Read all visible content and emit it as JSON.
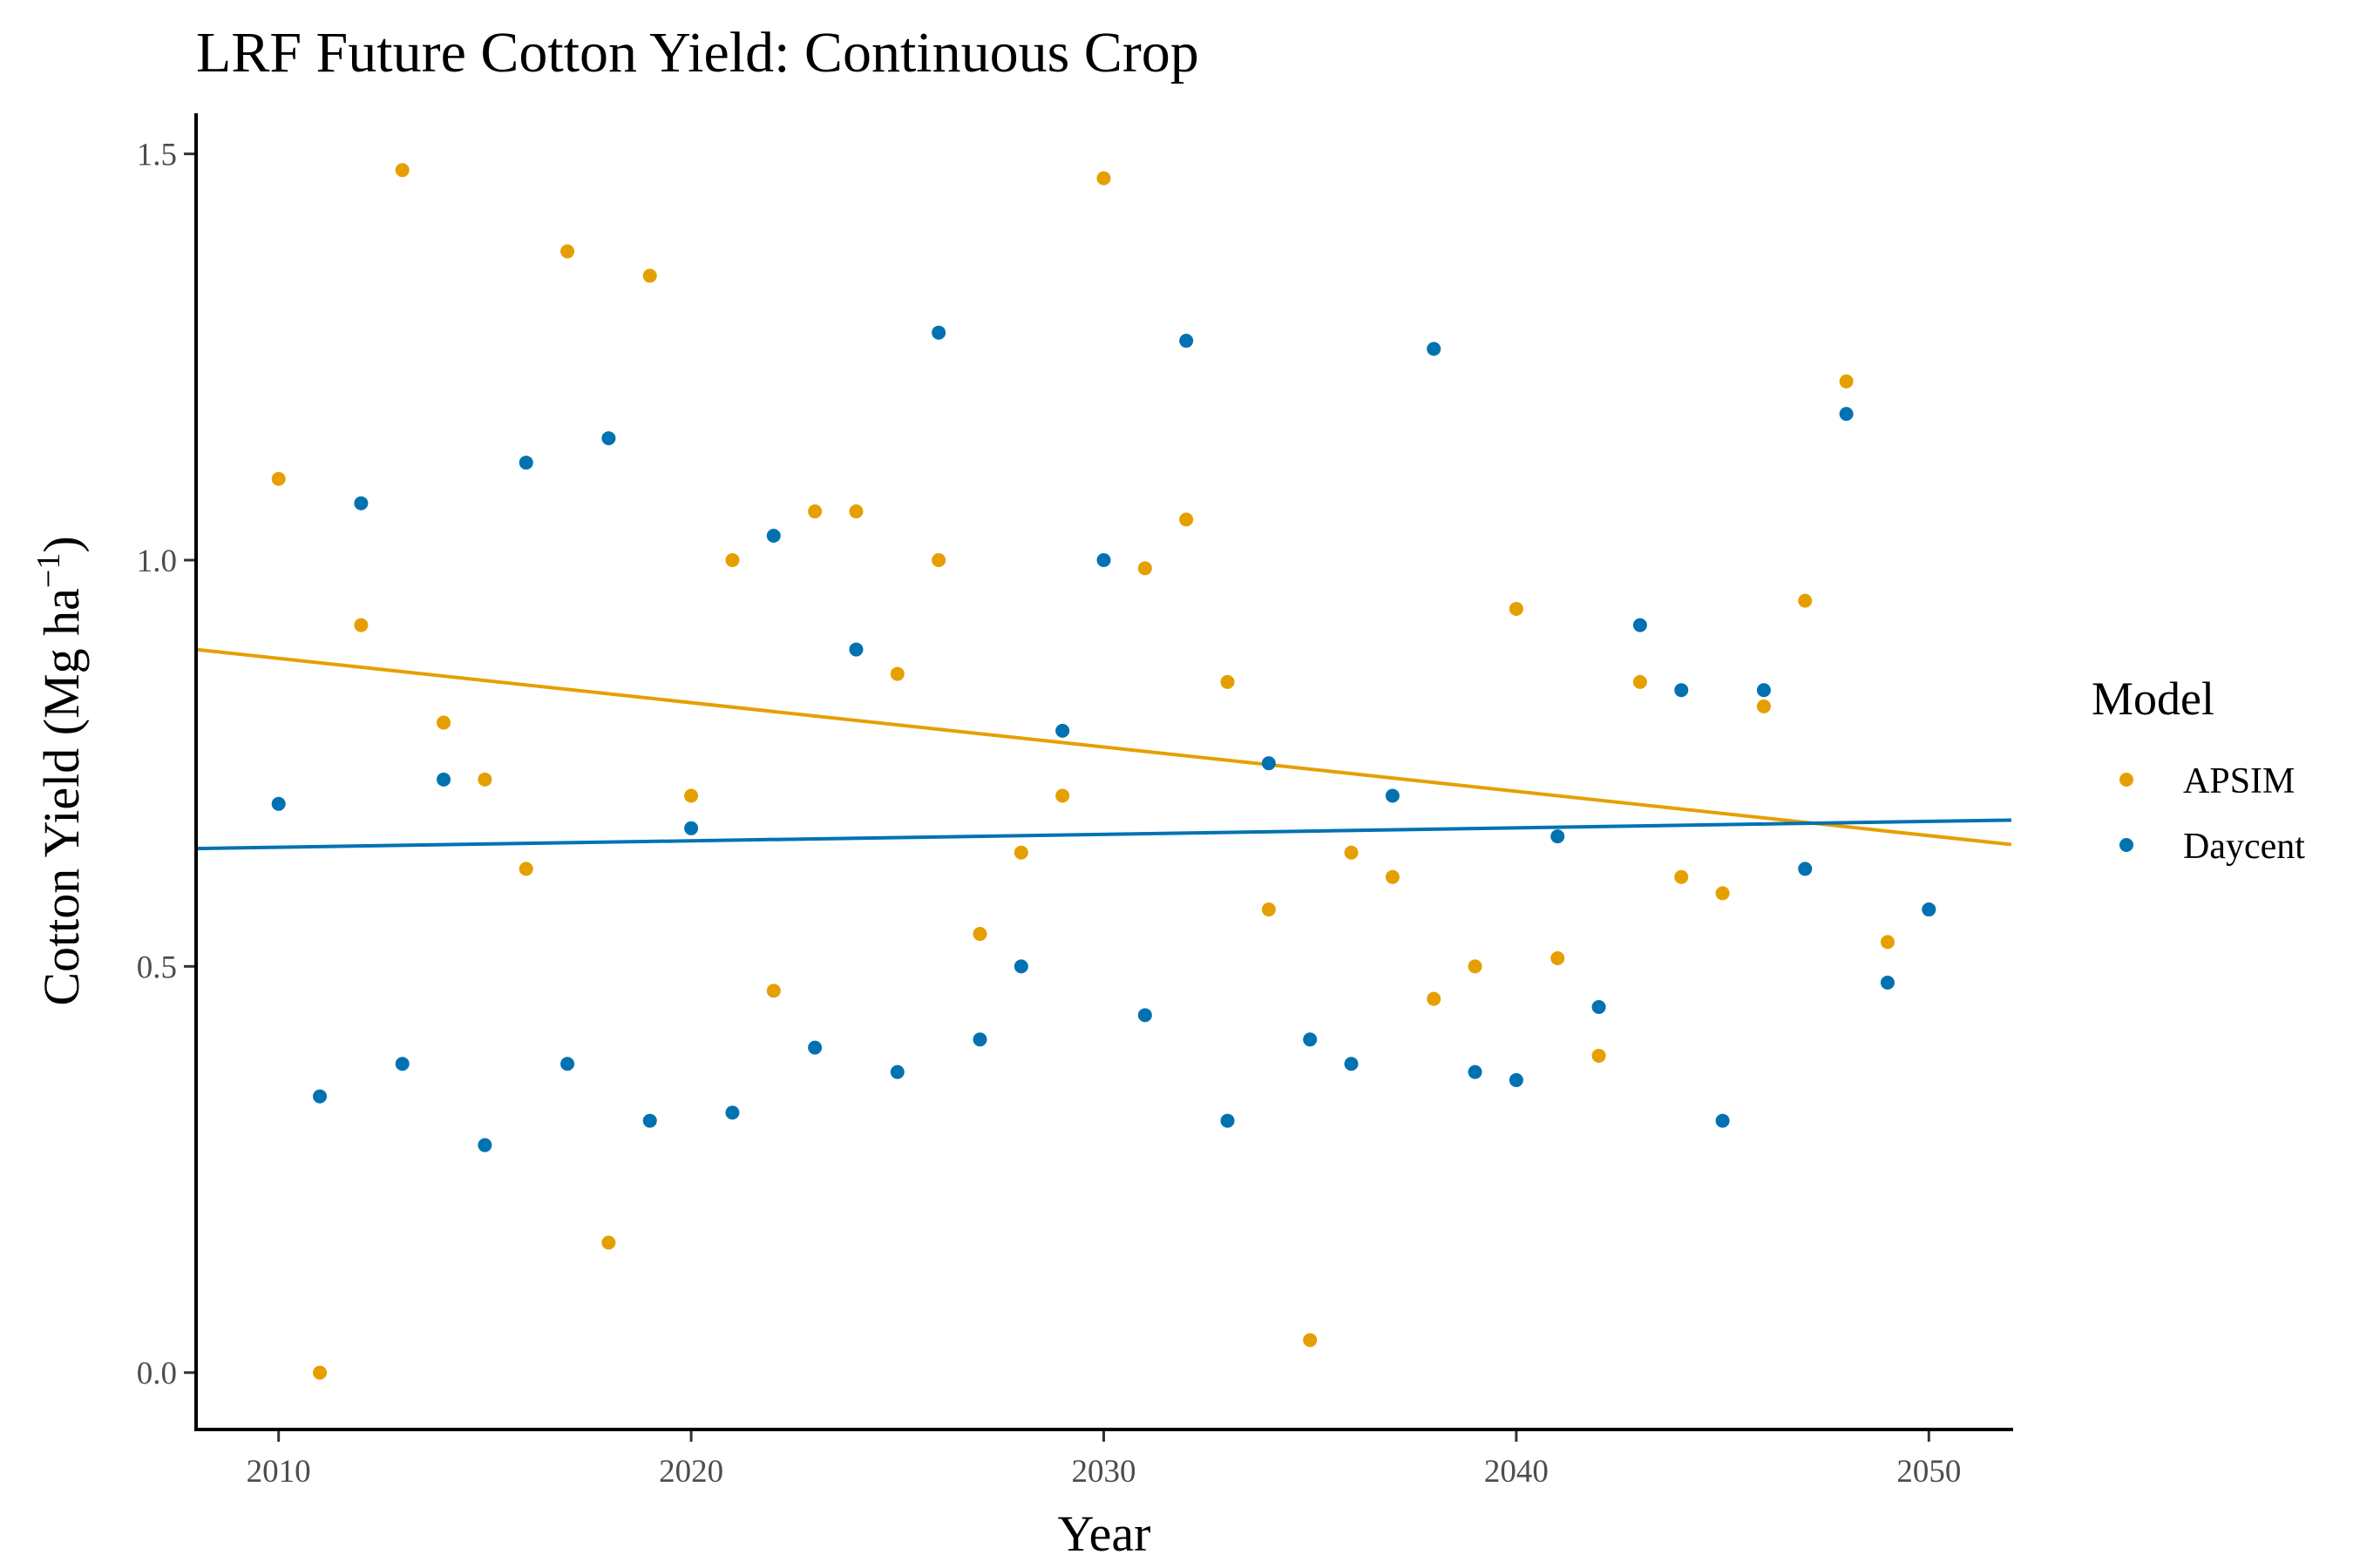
{
  "chart_data": {
    "type": "scatter",
    "title": "LRF Future Cotton Yield:  Continuous Crop",
    "xlabel": "Year",
    "ylabel_main": "Cotton Yield (Mg ha",
    "ylabel_sup": "−1",
    "ylabel_close": ")",
    "xlim": [
      2008,
      2052
    ],
    "ylim": [
      -0.07,
      1.55
    ],
    "x_ticks": [
      2010,
      2020,
      2030,
      2040,
      2050
    ],
    "y_ticks": [
      0.0,
      0.5,
      1.0,
      1.5
    ],
    "y_tick_labels": [
      "0.0",
      "0.5",
      "1.0",
      "1.5"
    ],
    "grid": false,
    "legend": {
      "title": "Model",
      "placement": "right"
    },
    "series": [
      {
        "name": "APSIM",
        "color": "#E69F00",
        "x": [
          2010,
          2011,
          2012,
          2013,
          2014,
          2015,
          2016,
          2017,
          2018,
          2019,
          2020,
          2021,
          2022,
          2023,
          2024,
          2025,
          2026,
          2027,
          2028,
          2029,
          2030,
          2031,
          2032,
          2033,
          2034,
          2035,
          2036,
          2037,
          2038,
          2039,
          2040,
          2041,
          2042,
          2043,
          2044,
          2045,
          2046,
          2047,
          2048,
          2049,
          2050
        ],
        "y": [
          1.1,
          0.0,
          0.92,
          1.48,
          0.8,
          0.73,
          0.62,
          1.38,
          0.16,
          1.35,
          0.71,
          1.0,
          0.47,
          1.06,
          1.06,
          0.86,
          1.0,
          0.54,
          0.64,
          0.71,
          1.47,
          0.99,
          1.05,
          0.85,
          0.57,
          0.04,
          0.64,
          0.61,
          0.46,
          0.5,
          0.94,
          0.51,
          0.39,
          0.85,
          0.61,
          0.59,
          0.82,
          0.95,
          1.22,
          0.53,
          0.57
        ],
        "trend": {
          "x": [
            2008,
            2052
          ],
          "y": [
            0.89,
            0.65
          ]
        }
      },
      {
        "name": "Daycent",
        "color": "#0072B2",
        "x": [
          2010,
          2011,
          2012,
          2013,
          2014,
          2015,
          2016,
          2017,
          2018,
          2019,
          2020,
          2021,
          2022,
          2023,
          2024,
          2025,
          2026,
          2027,
          2028,
          2029,
          2030,
          2031,
          2032,
          2033,
          2034,
          2035,
          2036,
          2037,
          2038,
          2039,
          2040,
          2041,
          2042,
          2043,
          2044,
          2045,
          2046,
          2047,
          2048,
          2049,
          2050
        ],
        "y": [
          0.7,
          0.34,
          1.07,
          0.38,
          0.73,
          0.28,
          1.12,
          0.38,
          1.15,
          0.31,
          0.67,
          0.32,
          1.03,
          0.4,
          0.89,
          0.37,
          1.28,
          0.41,
          0.5,
          0.79,
          1.0,
          0.44,
          1.27,
          0.31,
          0.75,
          0.41,
          0.38,
          0.71,
          1.26,
          0.37,
          0.36,
          0.66,
          0.45,
          0.92,
          0.84,
          0.31,
          0.84,
          0.62,
          1.18,
          0.48,
          0.57
        ],
        "trend": {
          "x": [
            2008,
            2052
          ],
          "y": [
            0.645,
            0.68
          ]
        }
      }
    ]
  }
}
